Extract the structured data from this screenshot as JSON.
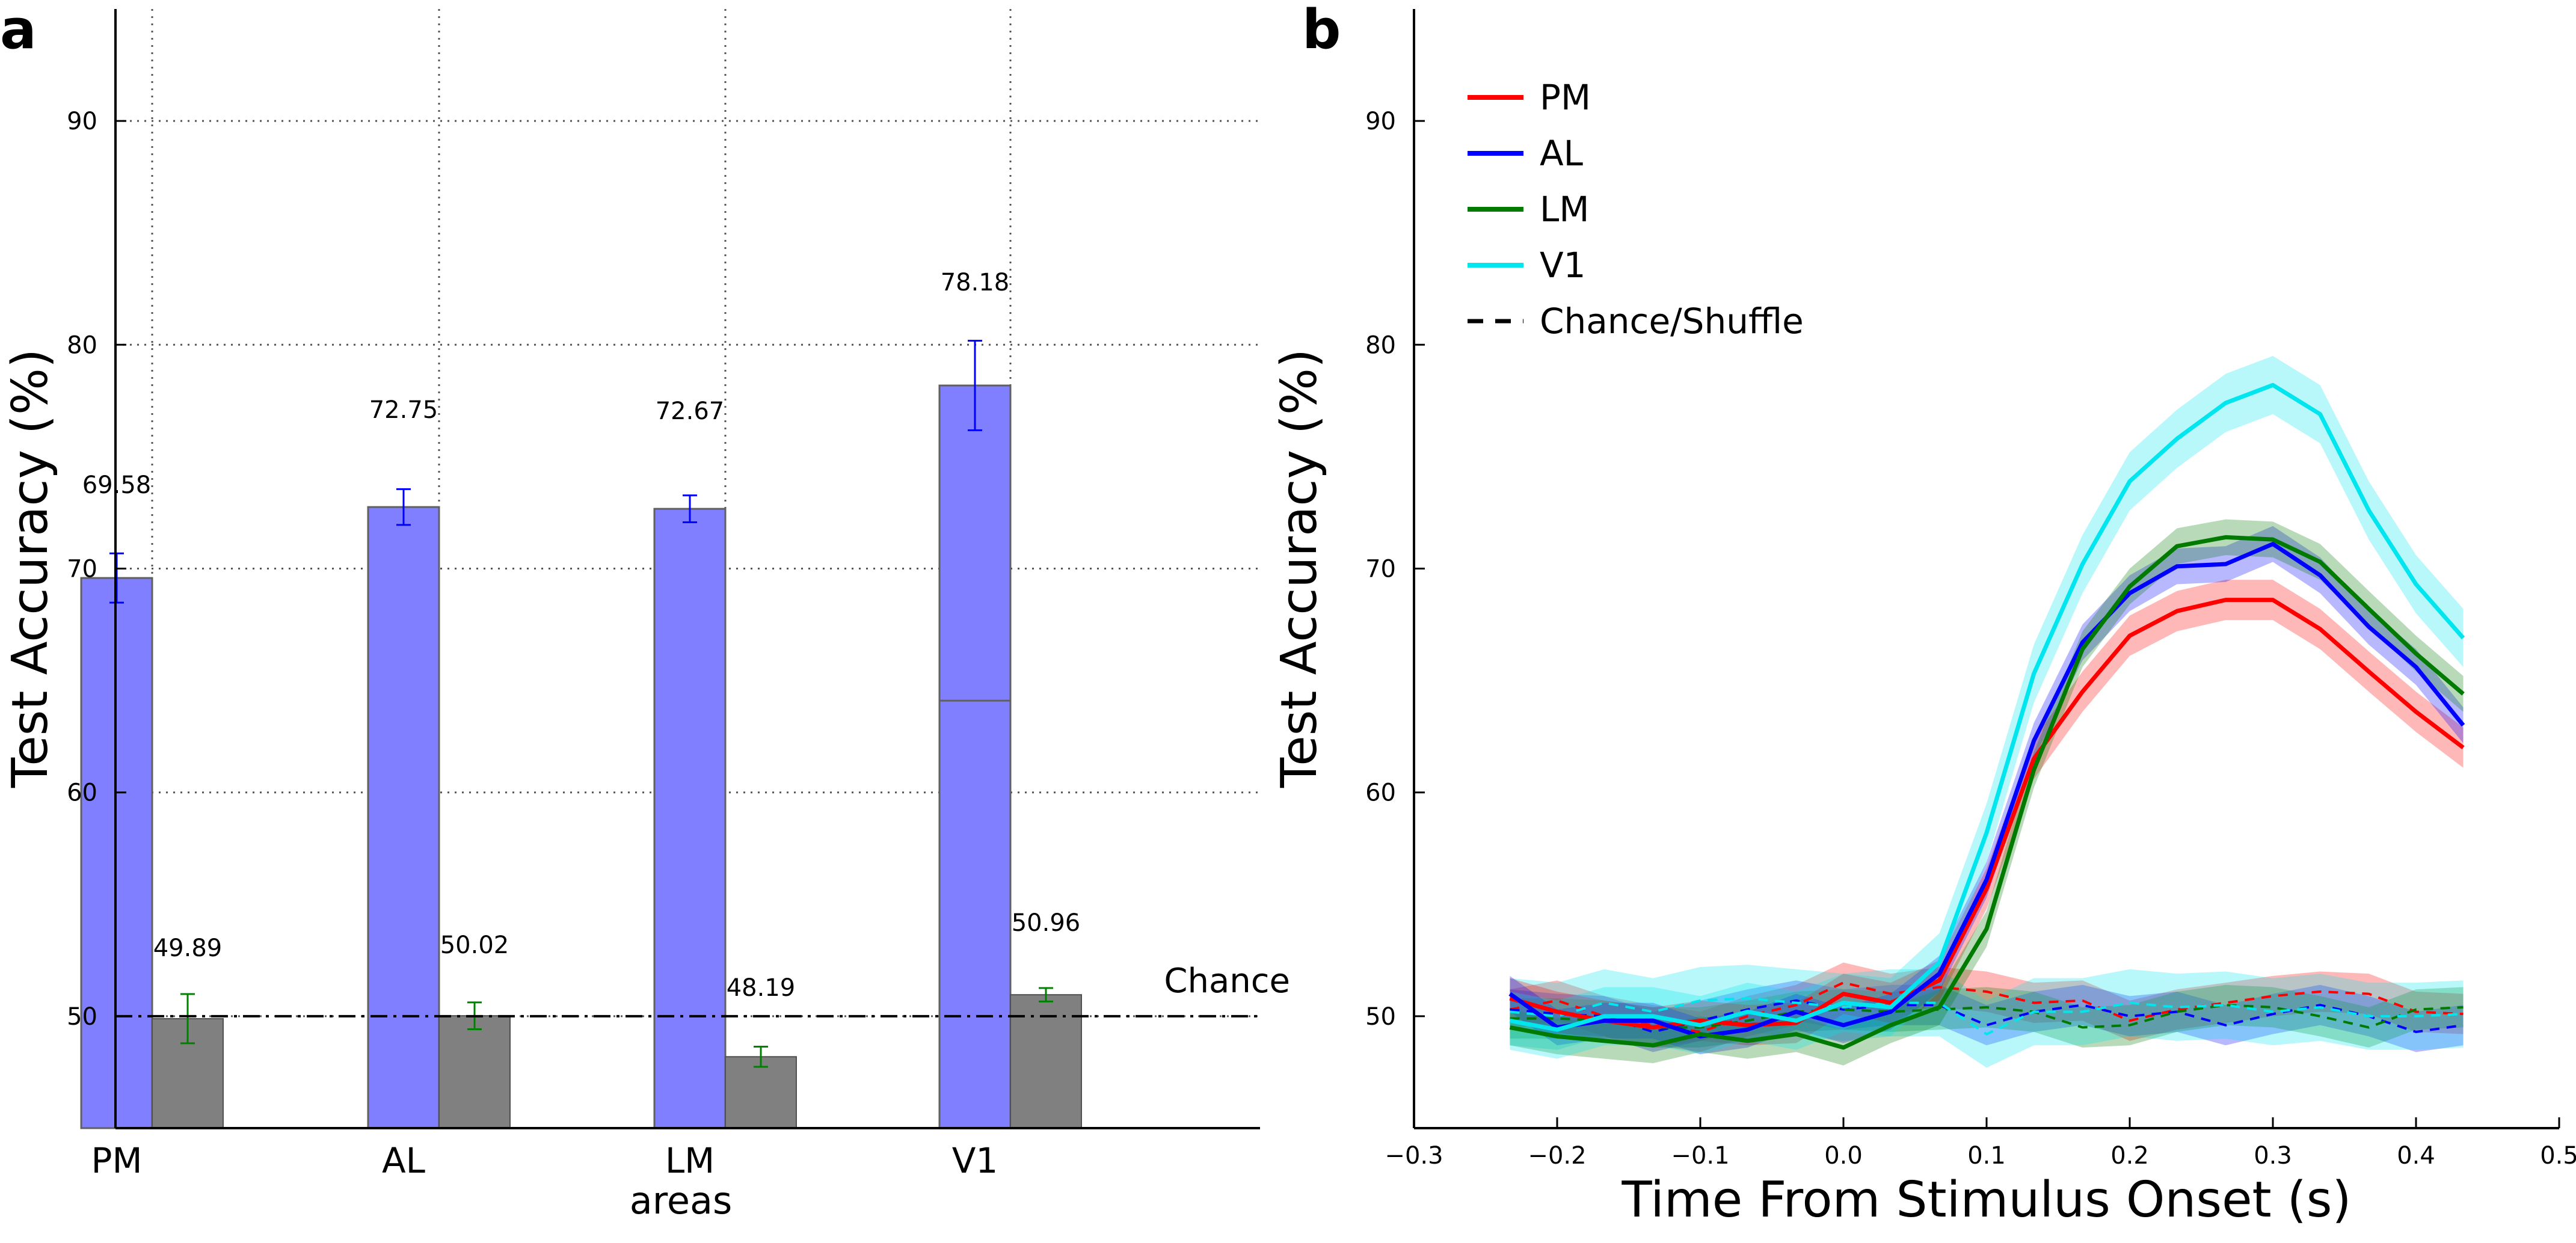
{
  "panels": {
    "a_label": "a",
    "b_label": "b"
  },
  "chart_data": [
    {
      "type": "bar",
      "panel": "a",
      "xlabel": "areas",
      "ylabel": "Test Accuracy (%)",
      "categories": [
        "PM",
        "AL",
        "LM",
        "V1"
      ],
      "ylim": [
        45,
        95
      ],
      "yticks": [
        50,
        60,
        70,
        80,
        90
      ],
      "grid": true,
      "series": [
        {
          "color": "#7f7fff",
          "error_color": "#0000ff",
          "values": [
            69.58,
            72.75,
            72.67,
            78.18
          ],
          "errors": [
            1.1,
            0.8,
            0.6,
            2.0
          ],
          "labels": [
            "69.58",
            "72.75",
            "72.67",
            "78.18"
          ]
        },
        {
          "color": "#808080",
          "error_color": "#008000",
          "values": [
            49.89,
            50.02,
            48.19,
            50.96
          ],
          "errors": [
            1.1,
            0.6,
            0.45,
            0.3
          ],
          "labels": [
            "49.89",
            "50.02",
            "48.19",
            "50.96"
          ]
        }
      ],
      "v1_inner_edge": 64.1,
      "chance_line": {
        "value": 50,
        "label": "Chance"
      }
    },
    {
      "type": "line",
      "panel": "b",
      "xlabel": "Time From Stimulus Onset (s)",
      "ylabel": "Test Accuracy (%)",
      "xlim": [
        -0.3,
        0.5
      ],
      "ylim": [
        45,
        95
      ],
      "xticks": [
        -0.3,
        -0.2,
        -0.1,
        0.0,
        0.1,
        0.2,
        0.3,
        0.4,
        0.5
      ],
      "xtick_labels": [
        "−0.3",
        "−0.2",
        "−0.1",
        "0.0",
        "0.1",
        "0.2",
        "0.3",
        "0.4",
        "0.5"
      ],
      "yticks": [
        50,
        60,
        70,
        80,
        90
      ],
      "legend_position": "top-left",
      "legend": [
        {
          "label": "PM",
          "color": "#ff0000",
          "dash": false
        },
        {
          "label": "AL",
          "color": "#0000ff",
          "dash": false
        },
        {
          "label": "LM",
          "color": "#007a00",
          "dash": false
        },
        {
          "label": "V1",
          "color": "#00e5ee",
          "dash": false
        },
        {
          "label": "Chance/Shuffle",
          "color": "#000000",
          "dash": true
        }
      ],
      "x": [
        -0.233,
        -0.2,
        -0.167,
        -0.133,
        -0.1,
        -0.067,
        -0.033,
        0.0,
        0.033,
        0.067,
        0.1,
        0.133,
        0.167,
        0.2,
        0.233,
        0.267,
        0.3,
        0.333,
        0.367,
        0.4,
        0.433
      ],
      "series": [
        {
          "name": "PM",
          "color": "#ff0000",
          "values": [
            50.8,
            50.2,
            49.8,
            49.5,
            49.8,
            49.6,
            49.7,
            51.0,
            50.6,
            51.6,
            55.7,
            61.5,
            64.5,
            67.0,
            68.1,
            68.6,
            68.6,
            67.3,
            65.4,
            63.6,
            62.0
          ],
          "band": 0.9
        },
        {
          "name": "AL",
          "color": "#0000ff",
          "values": [
            51.0,
            49.5,
            49.8,
            49.8,
            49.1,
            49.4,
            50.2,
            49.6,
            50.2,
            51.9,
            56.1,
            62.3,
            66.7,
            68.9,
            70.1,
            70.2,
            71.1,
            69.7,
            67.4,
            65.6,
            63.0
          ],
          "band": 0.8
        },
        {
          "name": "LM",
          "color": "#007a00",
          "values": [
            49.5,
            49.1,
            48.9,
            48.7,
            49.2,
            48.9,
            49.2,
            48.6,
            49.6,
            50.4,
            53.9,
            61.0,
            66.4,
            69.2,
            71.0,
            71.4,
            71.3,
            70.3,
            68.2,
            66.2,
            64.4
          ],
          "band": 0.8
        },
        {
          "name": "V1",
          "color": "#00e5ee",
          "values": [
            49.8,
            49.4,
            50.0,
            50.0,
            49.6,
            50.2,
            49.8,
            50.6,
            50.4,
            52.4,
            58.2,
            65.3,
            70.2,
            73.9,
            75.8,
            77.4,
            78.2,
            76.9,
            72.6,
            69.3,
            66.9
          ],
          "band": 1.3
        }
      ],
      "shuffle_series": [
        {
          "name": "PM",
          "color": "#ff0000",
          "values": [
            50.3,
            50.7,
            50.0,
            49.6,
            49.3,
            50.0,
            50.5,
            51.5,
            51.0,
            51.3,
            51.1,
            50.6,
            50.7,
            49.8,
            50.3,
            50.6,
            50.9,
            51.1,
            51.0,
            50.2,
            50.1
          ],
          "band": 0.9
        },
        {
          "name": "AL",
          "color": "#0000ff",
          "values": [
            50.3,
            50.1,
            50.0,
            49.3,
            49.8,
            50.3,
            50.7,
            50.3,
            50.5,
            50.5,
            49.6,
            50.2,
            50.5,
            50.0,
            50.2,
            49.6,
            50.1,
            50.5,
            50.0,
            49.3,
            49.6
          ],
          "band": 0.9
        },
        {
          "name": "LM",
          "color": "#007a00",
          "values": [
            49.9,
            49.9,
            49.8,
            49.5,
            49.5,
            49.8,
            50.2,
            50.3,
            50.2,
            50.3,
            50.4,
            50.2,
            49.5,
            49.6,
            50.2,
            50.5,
            50.4,
            50.0,
            49.5,
            50.3,
            50.4
          ],
          "band": 0.9
        },
        {
          "name": "V1",
          "color": "#00e5ee",
          "values": [
            50.2,
            50.0,
            50.6,
            50.2,
            50.7,
            50.8,
            50.6,
            50.4,
            50.6,
            50.6,
            49.2,
            50.2,
            50.2,
            50.6,
            50.4,
            50.5,
            50.2,
            50.4,
            50.0,
            50.0,
            50.1
          ],
          "band": 1.5
        }
      ]
    }
  ]
}
